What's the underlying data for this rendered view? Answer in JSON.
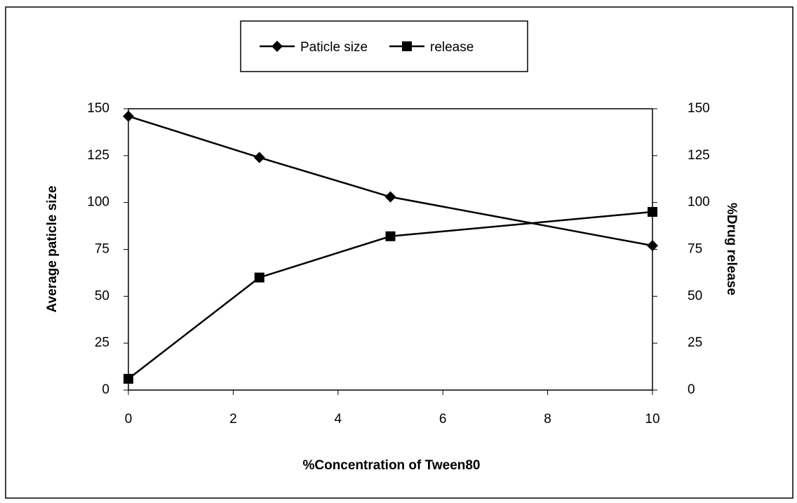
{
  "chart_data": {
    "type": "line",
    "x_label": "%Concentration of Tween80",
    "y_label": "Average paticle size",
    "y2_label": "%Drug release",
    "x": [
      0,
      2.5,
      5,
      10
    ],
    "series": [
      {
        "name": "Paticle size",
        "color": "#000000",
        "marker": "diamond",
        "values": [
          146,
          124,
          103,
          77
        ]
      },
      {
        "name": "release",
        "color": "#000000",
        "marker": "square",
        "axis": "y2",
        "values": [
          6,
          60,
          82,
          95
        ]
      }
    ],
    "xlim": [
      0,
      10
    ],
    "xticks": [
      0,
      2,
      4,
      6,
      8,
      10
    ],
    "ylim": [
      0,
      150
    ],
    "yticks": [
      0,
      25,
      50,
      75,
      100,
      125,
      150
    ],
    "y2lim": [
      0,
      150
    ],
    "y2ticks": [
      0,
      25,
      50,
      75,
      100,
      125,
      150
    ],
    "legend": "top"
  }
}
